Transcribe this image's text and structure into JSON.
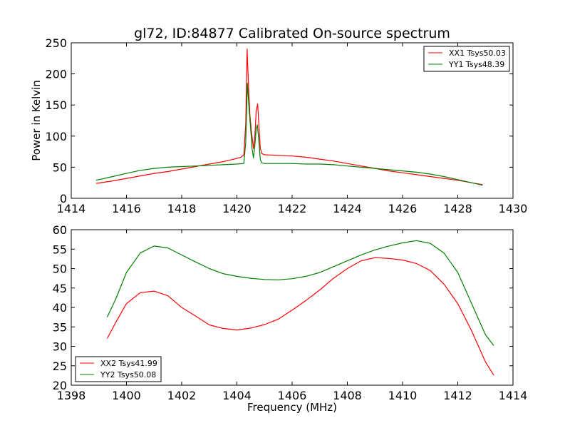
{
  "chart_data": [
    {
      "type": "line",
      "title": "gl72, ID:84877 Calibrated On-source spectrum",
      "xlabel": "",
      "ylabel": "Power in Kelvin",
      "xlim": [
        1414,
        1430
      ],
      "ylim": [
        0,
        250
      ],
      "xticks": [
        "1414",
        "1416",
        "1418",
        "1420",
        "1422",
        "1424",
        "1426",
        "1428",
        "1430"
      ],
      "yticks": [
        "0",
        "50",
        "100",
        "150",
        "200",
        "250"
      ],
      "legend_position": "top-right",
      "series": [
        {
          "name": "XX1 Tsys50.03",
          "color": "#ff0000",
          "points": [
            [
              1414.9,
              24
            ],
            [
              1415.5,
              28
            ],
            [
              1416,
              32
            ],
            [
              1416.5,
              36
            ],
            [
              1417,
              40
            ],
            [
              1417.5,
              43
            ],
            [
              1418,
              47
            ],
            [
              1418.5,
              51
            ],
            [
              1419,
              55
            ],
            [
              1419.5,
              59
            ],
            [
              1419.9,
              63
            ],
            [
              1420.15,
              66
            ],
            [
              1420.25,
              70
            ],
            [
              1420.32,
              120
            ],
            [
              1420.37,
              240
            ],
            [
              1420.42,
              180
            ],
            [
              1420.47,
              135
            ],
            [
              1420.52,
              110
            ],
            [
              1420.56,
              95
            ],
            [
              1420.6,
              80
            ],
            [
              1420.65,
              100
            ],
            [
              1420.7,
              140
            ],
            [
              1420.75,
              152
            ],
            [
              1420.8,
              115
            ],
            [
              1420.85,
              80
            ],
            [
              1420.9,
              72
            ],
            [
              1421,
              70
            ],
            [
              1421.5,
              69
            ],
            [
              1422,
              68
            ],
            [
              1422.5,
              66
            ],
            [
              1423,
              63
            ],
            [
              1423.5,
              60
            ],
            [
              1424,
              56
            ],
            [
              1424.5,
              52
            ],
            [
              1425,
              48
            ],
            [
              1425.5,
              44
            ],
            [
              1426,
              41
            ],
            [
              1426.5,
              38
            ],
            [
              1427,
              35
            ],
            [
              1427.5,
              32
            ],
            [
              1428,
              29
            ],
            [
              1428.5,
              25
            ],
            [
              1428.9,
              22
            ]
          ]
        },
        {
          "name": "YY1 Tsys48.39",
          "color": "#008000",
          "points": [
            [
              1414.9,
              29
            ],
            [
              1415.5,
              35
            ],
            [
              1416,
              40
            ],
            [
              1416.5,
              45
            ],
            [
              1417,
              48
            ],
            [
              1417.5,
              50
            ],
            [
              1418,
              51
            ],
            [
              1418.5,
              52
            ],
            [
              1419,
              53
            ],
            [
              1419.5,
              54
            ],
            [
              1420,
              55
            ],
            [
              1420.25,
              56
            ],
            [
              1420.32,
              90
            ],
            [
              1420.38,
              185
            ],
            [
              1420.43,
              150
            ],
            [
              1420.5,
              110
            ],
            [
              1420.55,
              80
            ],
            [
              1420.6,
              65
            ],
            [
              1420.65,
              85
            ],
            [
              1420.7,
              112
            ],
            [
              1420.74,
              118
            ],
            [
              1420.8,
              90
            ],
            [
              1420.85,
              62
            ],
            [
              1420.9,
              57
            ],
            [
              1421,
              56
            ],
            [
              1421.5,
              56
            ],
            [
              1422,
              56
            ],
            [
              1422.5,
              55
            ],
            [
              1423,
              55
            ],
            [
              1423.5,
              54
            ],
            [
              1424,
              52
            ],
            [
              1424.5,
              50
            ],
            [
              1425,
              48
            ],
            [
              1425.5,
              46
            ],
            [
              1426,
              44
            ],
            [
              1426.5,
              42
            ],
            [
              1427,
              39
            ],
            [
              1427.5,
              35
            ],
            [
              1428,
              30
            ],
            [
              1428.5,
              25
            ],
            [
              1428.9,
              21
            ]
          ]
        }
      ]
    },
    {
      "type": "line",
      "title": "",
      "xlabel": "Frequency (MHz)",
      "ylabel": "",
      "xlim": [
        1398,
        1414
      ],
      "ylim": [
        20,
        60
      ],
      "xticks": [
        "1398",
        "1400",
        "1402",
        "1404",
        "1406",
        "1408",
        "1410",
        "1412",
        "1414"
      ],
      "yticks": [
        "20",
        "25",
        "30",
        "35",
        "40",
        "45",
        "50",
        "55",
        "60"
      ],
      "legend_position": "bottom-left",
      "series": [
        {
          "name": "XX2 Tsys41.99",
          "color": "#ff0000",
          "points": [
            [
              1399.3,
              32
            ],
            [
              1399.6,
              36
            ],
            [
              1400,
              41
            ],
            [
              1400.5,
              43.8
            ],
            [
              1401,
              44.2
            ],
            [
              1401.5,
              43
            ],
            [
              1402,
              40
            ],
            [
              1402.5,
              37.8
            ],
            [
              1403,
              35.5
            ],
            [
              1403.5,
              34.6
            ],
            [
              1404,
              34.2
            ],
            [
              1404.5,
              34.7
            ],
            [
              1405,
              35.6
            ],
            [
              1405.5,
              37
            ],
            [
              1406,
              39.3
            ],
            [
              1406.5,
              41.8
            ],
            [
              1407,
              44.5
            ],
            [
              1407.5,
              47.5
            ],
            [
              1408,
              50
            ],
            [
              1408.5,
              52
            ],
            [
              1409,
              52.8
            ],
            [
              1409.5,
              52.6
            ],
            [
              1410,
              52.2
            ],
            [
              1410.5,
              51.3
            ],
            [
              1411,
              49.5
            ],
            [
              1411.5,
              46
            ],
            [
              1412,
              41
            ],
            [
              1412.5,
              34
            ],
            [
              1413,
              26
            ],
            [
              1413.3,
              22.6
            ]
          ]
        },
        {
          "name": "YY2 Tsys50.08",
          "color": "#008000",
          "points": [
            [
              1399.3,
              37.5
            ],
            [
              1399.6,
              42
            ],
            [
              1400,
              49
            ],
            [
              1400.5,
              54
            ],
            [
              1401,
              55.8
            ],
            [
              1401.5,
              55.3
            ],
            [
              1402,
              53.5
            ],
            [
              1402.5,
              51.7
            ],
            [
              1403,
              50
            ],
            [
              1403.5,
              48.7
            ],
            [
              1404,
              48
            ],
            [
              1404.5,
              47.5
            ],
            [
              1405,
              47.2
            ],
            [
              1405.5,
              47.1
            ],
            [
              1406,
              47.4
            ],
            [
              1406.5,
              48
            ],
            [
              1407,
              49
            ],
            [
              1407.5,
              50.5
            ],
            [
              1408,
              52
            ],
            [
              1408.5,
              53.5
            ],
            [
              1409,
              54.8
            ],
            [
              1409.5,
              55.8
            ],
            [
              1410,
              56.6
            ],
            [
              1410.5,
              57.2
            ],
            [
              1411,
              56.5
            ],
            [
              1411.5,
              54
            ],
            [
              1412,
              49
            ],
            [
              1412.5,
              41
            ],
            [
              1413,
              33
            ],
            [
              1413.3,
              30.2
            ]
          ]
        }
      ]
    }
  ]
}
